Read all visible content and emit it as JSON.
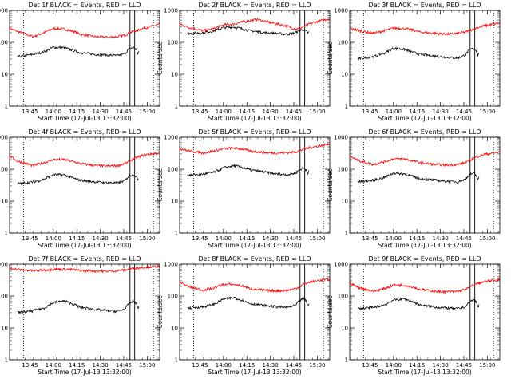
{
  "chart_data": {
    "type": "line",
    "layout": "grid-3x3",
    "shared": {
      "xlabel": "Start Time (17-Jul-13 13:32:00)",
      "ylabel": "Counts/sec",
      "x_unit": "minutes since 13:32:00",
      "xlim": [
        0,
        96
      ],
      "ylim": [
        1,
        1000
      ],
      "yscale": "log",
      "xtick_labels": [
        "13:45",
        "14:00",
        "14:15",
        "14:30",
        "14:45",
        "15:00"
      ],
      "ytick_labels": [
        "1",
        "10",
        "100",
        "1000"
      ],
      "dotted_vlines_labels": [],
      "grid": false,
      "legend": "title-embedded",
      "series_colors": {
        "events": "#000000",
        "lld": "#ff0000"
      }
    },
    "panels": [
      {
        "title": "Det 1f BLACK = Events, RED = LLD",
        "events": {
          "x": [
            5,
            15,
            22,
            28,
            35,
            41,
            45,
            55,
            62,
            69,
            74,
            76,
            79,
            81,
            82,
            83
          ],
          "y": [
            35,
            42,
            50,
            70,
            68,
            55,
            47,
            42,
            40,
            38,
            45,
            60,
            70,
            60,
            45,
            55
          ]
        },
        "lld": {
          "x": [
            0,
            5,
            15,
            22,
            28,
            35,
            41,
            45,
            55,
            62,
            69,
            74,
            77,
            79,
            82,
            86,
            96
          ],
          "y": [
            270,
            220,
            150,
            200,
            270,
            260,
            220,
            180,
            150,
            145,
            150,
            170,
            200,
            220,
            240,
            280,
            360
          ]
        }
      },
      {
        "title": "Det 2f BLACK = Events, RED = LLD",
        "events": {
          "x": [
            5,
            15,
            22,
            28,
            35,
            41,
            45,
            55,
            62,
            69,
            74,
            76,
            79,
            81,
            82,
            83
          ],
          "y": [
            190,
            200,
            230,
            290,
            300,
            260,
            230,
            200,
            190,
            180,
            200,
            230,
            250,
            220,
            200,
            210
          ]
        },
        "lld": {
          "x": [
            0,
            5,
            15,
            22,
            28,
            35,
            41,
            45,
            50,
            55,
            62,
            69,
            74,
            77,
            79,
            82,
            86,
            96
          ],
          "y": [
            380,
            300,
            230,
            270,
            350,
            380,
            440,
            480,
            520,
            450,
            380,
            320,
            260,
            270,
            300,
            360,
            420,
            560
          ]
        }
      },
      {
        "title": "Det 3f BLACK = Events, RED = LLD",
        "events": {
          "x": [
            5,
            15,
            22,
            28,
            35,
            41,
            45,
            55,
            62,
            69,
            74,
            76,
            79,
            81,
            82,
            83
          ],
          "y": [
            30,
            36,
            45,
            65,
            60,
            48,
            42,
            37,
            34,
            32,
            40,
            55,
            65,
            55,
            40,
            50
          ]
        },
        "lld": {
          "x": [
            0,
            5,
            15,
            22,
            28,
            35,
            41,
            45,
            55,
            62,
            69,
            74,
            77,
            79,
            82,
            86,
            96
          ],
          "y": [
            270,
            240,
            190,
            230,
            280,
            270,
            240,
            210,
            190,
            180,
            190,
            210,
            240,
            260,
            290,
            330,
            400
          ]
        }
      },
      {
        "title": "Det 4f BLACK = Events, RED = LLD",
        "events": {
          "x": [
            5,
            15,
            22,
            28,
            35,
            41,
            45,
            55,
            62,
            69,
            74,
            76,
            79,
            81,
            82,
            83
          ],
          "y": [
            35,
            40,
            48,
            68,
            66,
            52,
            45,
            40,
            38,
            37,
            44,
            60,
            70,
            60,
            45,
            55
          ]
        },
        "lld": {
          "x": [
            0,
            5,
            15,
            22,
            28,
            35,
            41,
            45,
            55,
            62,
            69,
            74,
            77,
            79,
            82,
            86,
            96
          ],
          "y": [
            260,
            180,
            130,
            160,
            200,
            200,
            170,
            150,
            130,
            125,
            130,
            150,
            180,
            210,
            240,
            280,
            330
          ]
        }
      },
      {
        "title": "Det 5f BLACK = Events, RED = LLD",
        "events": {
          "x": [
            5,
            15,
            22,
            28,
            35,
            41,
            45,
            55,
            62,
            69,
            74,
            76,
            79,
            81,
            82,
            83
          ],
          "y": [
            65,
            70,
            80,
            110,
            130,
            110,
            95,
            80,
            70,
            68,
            75,
            90,
            110,
            95,
            75,
            90
          ]
        },
        "lld": {
          "x": [
            0,
            5,
            15,
            22,
            28,
            35,
            41,
            45,
            55,
            62,
            69,
            74,
            77,
            79,
            82,
            86,
            96
          ],
          "y": [
            450,
            380,
            320,
            370,
            440,
            460,
            420,
            370,
            330,
            320,
            330,
            350,
            380,
            420,
            460,
            500,
            620
          ]
        }
      },
      {
        "title": "Det 6f BLACK = Events, RED = LLD",
        "events": {
          "x": [
            5,
            15,
            22,
            28,
            35,
            41,
            45,
            55,
            62,
            69,
            74,
            76,
            79,
            81,
            82,
            83
          ],
          "y": [
            40,
            45,
            55,
            75,
            72,
            58,
            50,
            45,
            42,
            40,
            48,
            65,
            75,
            62,
            48,
            58
          ]
        },
        "lld": {
          "x": [
            0,
            5,
            15,
            22,
            28,
            35,
            41,
            45,
            55,
            62,
            69,
            74,
            77,
            79,
            82,
            86,
            96
          ],
          "y": [
            260,
            190,
            140,
            170,
            210,
            210,
            180,
            160,
            140,
            135,
            140,
            160,
            190,
            220,
            250,
            290,
            340
          ]
        }
      },
      {
        "title": "Det 7f BLACK = Events, RED = LLD",
        "events": {
          "x": [
            5,
            15,
            22,
            28,
            35,
            41,
            45,
            55,
            62,
            69,
            74,
            76,
            79,
            81,
            82,
            83
          ],
          "y": [
            30,
            34,
            42,
            62,
            70,
            55,
            45,
            38,
            35,
            33,
            40,
            55,
            70,
            58,
            42,
            50
          ]
        },
        "lld": {
          "x": [
            0,
            5,
            15,
            22,
            28,
            35,
            41,
            45,
            55,
            62,
            69,
            74,
            77,
            79,
            82,
            86,
            96
          ],
          "y": [
            760,
            680,
            620,
            650,
            700,
            690,
            660,
            630,
            610,
            600,
            620,
            660,
            700,
            730,
            760,
            800,
            860
          ]
        }
      },
      {
        "title": "Det 8f BLACK = Events, RED = LLD",
        "events": {
          "x": [
            5,
            15,
            22,
            28,
            35,
            41,
            45,
            55,
            62,
            69,
            74,
            76,
            79,
            81,
            82,
            83
          ],
          "y": [
            42,
            46,
            55,
            80,
            90,
            70,
            58,
            50,
            46,
            44,
            50,
            65,
            85,
            70,
            50,
            60
          ]
        },
        "lld": {
          "x": [
            0,
            5,
            15,
            22,
            28,
            35,
            41,
            45,
            55,
            62,
            69,
            74,
            77,
            79,
            82,
            86,
            96
          ],
          "y": [
            280,
            200,
            150,
            180,
            230,
            230,
            200,
            170,
            150,
            145,
            150,
            170,
            200,
            230,
            260,
            290,
            340
          ]
        }
      },
      {
        "title": "Det 9f BLACK = Events, RED = LLD",
        "events": {
          "x": [
            5,
            15,
            22,
            28,
            35,
            41,
            45,
            55,
            62,
            69,
            74,
            76,
            79,
            81,
            82,
            83
          ],
          "y": [
            40,
            44,
            52,
            75,
            82,
            64,
            52,
            45,
            42,
            40,
            46,
            60,
            78,
            64,
            46,
            55
          ]
        },
        "lld": {
          "x": [
            0,
            5,
            15,
            22,
            28,
            35,
            41,
            45,
            55,
            62,
            69,
            74,
            77,
            79,
            82,
            86,
            96
          ],
          "y": [
            260,
            190,
            140,
            170,
            220,
            220,
            190,
            160,
            140,
            135,
            140,
            160,
            190,
            220,
            250,
            280,
            330
          ]
        }
      }
    ]
  }
}
